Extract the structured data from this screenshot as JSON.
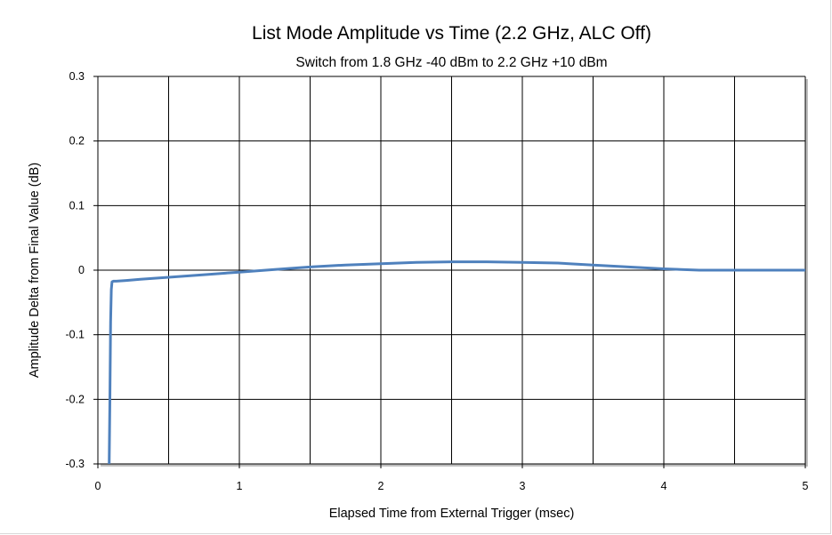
{
  "chart_data": {
    "type": "line",
    "title": "List Mode Amplitude vs Time  (2.2 GHz,  ALC Off)",
    "subtitle": "Switch from 1.8 GHz -40 dBm  to 2.2 GHz +10 dBm",
    "xlabel": "Elapsed Time from External Trigger (msec)",
    "ylabel": "Amplitude Delta from Final Value (dB)",
    "xlim": [
      0,
      5
    ],
    "ylim": [
      -0.3,
      0.3
    ],
    "xticks": [
      0,
      1,
      2,
      3,
      4,
      5
    ],
    "xtick_labels": [
      "0",
      "1",
      "2",
      "3",
      "4",
      "5"
    ],
    "yticks": [
      0.3,
      0.2,
      0.1,
      0,
      -0.1,
      -0.2,
      -0.3
    ],
    "ytick_labels": [
      "0.3",
      "0.2",
      "0.1",
      "0",
      "-0.1",
      "-0.2",
      "-0.3"
    ],
    "x_grid_lines": [
      0.5,
      1,
      1.5,
      2,
      2.5,
      3,
      3.5,
      4,
      4.5,
      5
    ],
    "grid": true,
    "legend": "none",
    "series_color": "#4f81bd",
    "series": [
      {
        "x": [
          0.08,
          0.085,
          0.09,
          0.095,
          0.1,
          0.11,
          0.13,
          0.2,
          0.3,
          0.5,
          0.75,
          1.0,
          1.25,
          1.5,
          1.75,
          2.0,
          2.25,
          2.5,
          2.75,
          3.0,
          3.25,
          3.5,
          3.75,
          4.0,
          4.25,
          4.5,
          4.75,
          5.0
        ],
        "values": [
          -0.3,
          -0.2,
          -0.08,
          -0.03,
          -0.018,
          -0.017,
          -0.017,
          -0.016,
          -0.014,
          -0.011,
          -0.007,
          -0.003,
          0.001,
          0.005,
          0.008,
          0.01,
          0.012,
          0.013,
          0.013,
          0.012,
          0.011,
          0.008,
          0.005,
          0.002,
          0.0,
          0.0,
          0.0,
          0.0
        ]
      }
    ]
  }
}
